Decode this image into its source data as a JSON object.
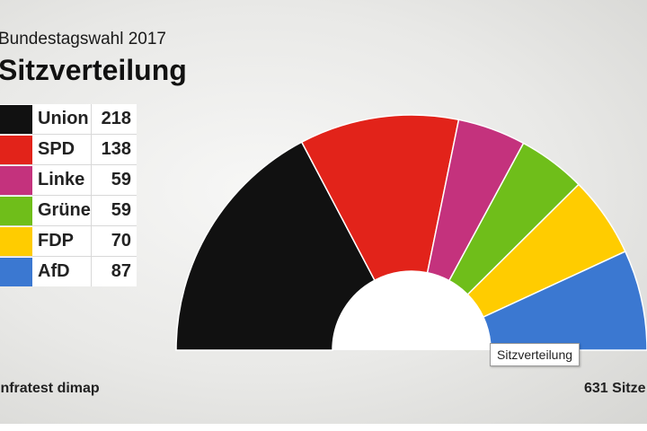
{
  "header": {
    "supertitle": "Bundestagswahl 2017",
    "title": "Sitzverteilung"
  },
  "footer": {
    "source": "infratest dimap",
    "total": "631 Sitze"
  },
  "tooltip": "Sitzverteilung",
  "chart_data": {
    "type": "pie",
    "subtype": "semicircle",
    "title": "Sitzverteilung",
    "categories": [
      "Union",
      "SPD",
      "Linke",
      "Grüne",
      "FDP",
      "AfD"
    ],
    "values": [
      218,
      138,
      59,
      59,
      70,
      87
    ],
    "colors": [
      "#111111",
      "#e2231a",
      "#c4327d",
      "#6fbe1a",
      "#ffcc00",
      "#3b78d1"
    ],
    "total": 631
  }
}
